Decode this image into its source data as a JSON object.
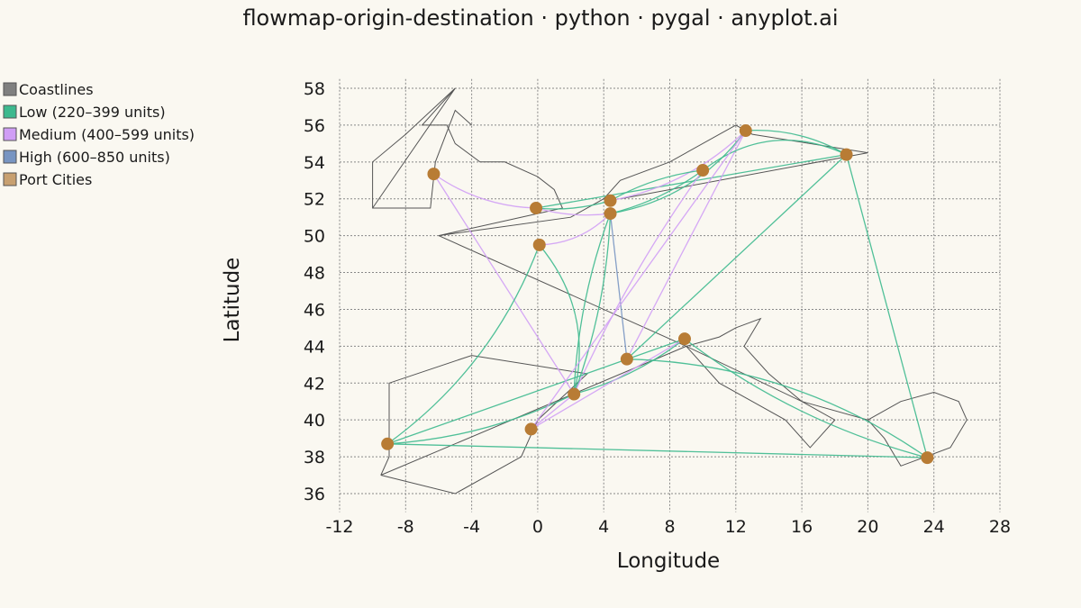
{
  "chart_data": {
    "type": "scatter",
    "title": "flowmap-origin-destination · python · pygal · anyplot.ai",
    "xlabel": "Longitude",
    "ylabel": "Latitude",
    "xlim": [
      -12,
      28
    ],
    "ylim": [
      35,
      58.5
    ],
    "x_ticks": [
      -12,
      -8,
      -4,
      0,
      4,
      8,
      12,
      16,
      20,
      24,
      28
    ],
    "y_ticks": [
      36,
      38,
      40,
      42,
      44,
      46,
      48,
      50,
      52,
      54,
      56,
      58
    ],
    "grid": true,
    "legend_position": "left",
    "legend": [
      {
        "label": "Coastlines",
        "color": "#808080"
      },
      {
        "label": "Low (220–399 units)",
        "color": "#3db98e"
      },
      {
        "label": "Medium (400–599 units)",
        "color": "#d09ef5"
      },
      {
        "label": "High (600–850 units)",
        "color": "#7895c2"
      },
      {
        "label": "Port Cities",
        "color": "#c8a070"
      }
    ],
    "point_color": "#b87c35",
    "coastlines": [
      [
        [
          -10,
          51.5
        ],
        [
          -5,
          58
        ],
        [
          -8,
          55.5
        ],
        [
          -10,
          54
        ],
        [
          -10,
          51.5
        ],
        [
          -6.5,
          51.5
        ],
        [
          -6.2,
          54
        ],
        [
          -5,
          56.8
        ],
        [
          -4,
          56
        ]
      ],
      [
        [
          -5,
          58
        ],
        [
          -7,
          56
        ],
        [
          -5.5,
          56
        ],
        [
          -5,
          55
        ],
        [
          -3.5,
          54
        ],
        [
          -2,
          54
        ],
        [
          0,
          53.2
        ],
        [
          1,
          52.5
        ],
        [
          1.5,
          51.5
        ],
        [
          0,
          51.2
        ],
        [
          -6,
          50
        ],
        [
          2,
          51
        ],
        [
          4,
          52
        ],
        [
          5,
          53
        ],
        [
          8,
          54
        ],
        [
          12,
          56
        ],
        [
          13,
          55.5
        ],
        [
          20,
          54.5
        ],
        [
          5,
          52
        ]
      ],
      [
        [
          -6,
          50
        ],
        [
          9,
          44
        ],
        [
          16,
          41
        ],
        [
          20,
          40
        ],
        [
          22,
          41
        ],
        [
          24,
          41.5
        ],
        [
          25.5,
          41
        ],
        [
          26,
          40
        ],
        [
          25,
          38.5
        ],
        [
          22,
          37.5
        ],
        [
          21,
          39
        ],
        [
          20,
          40
        ]
      ],
      [
        [
          -9.5,
          37
        ],
        [
          9,
          44
        ],
        [
          11,
          44.5
        ],
        [
          12,
          45
        ],
        [
          13.5,
          45.5
        ],
        [
          12.5,
          44
        ],
        [
          14,
          42.5
        ],
        [
          16,
          41
        ],
        [
          18,
          40
        ],
        [
          16.5,
          38.5
        ],
        [
          15,
          40
        ],
        [
          13,
          41
        ],
        [
          11,
          42
        ],
        [
          9,
          44
        ]
      ],
      [
        [
          -9.5,
          37
        ],
        [
          -5,
          36
        ],
        [
          -1,
          38
        ],
        [
          0,
          40
        ],
        [
          3,
          42.5
        ],
        [
          -4,
          43.5
        ],
        [
          -9,
          42
        ],
        [
          -9,
          38
        ],
        [
          -9.5,
          37
        ]
      ]
    ],
    "cities": [
      {
        "lon": -6.3,
        "lat": 53.35
      },
      {
        "lon": -0.1,
        "lat": 51.5
      },
      {
        "lon": 0.1,
        "lat": 49.5
      },
      {
        "lon": 4.4,
        "lat": 51.9
      },
      {
        "lon": 4.4,
        "lat": 51.2
      },
      {
        "lon": 10.0,
        "lat": 53.55
      },
      {
        "lon": 12.6,
        "lat": 55.7
      },
      {
        "lon": 18.7,
        "lat": 54.4
      },
      {
        "lon": 8.9,
        "lat": 44.4
      },
      {
        "lon": 5.4,
        "lat": 43.3
      },
      {
        "lon": 2.2,
        "lat": 41.4
      },
      {
        "lon": -0.4,
        "lat": 39.5
      },
      {
        "lon": -9.1,
        "lat": 38.7
      },
      {
        "lon": 23.6,
        "lat": 37.95
      }
    ],
    "flows": [
      {
        "from": [
          -6.3,
          53.35
        ],
        "to": [
          -0.1,
          51.5
        ],
        "level": "medium",
        "bend": 0.15
      },
      {
        "from": [
          -6.3,
          53.35
        ],
        "to": [
          2.2,
          41.4
        ],
        "level": "medium",
        "bend": 0
      },
      {
        "from": [
          -0.1,
          51.5
        ],
        "to": [
          4.4,
          51.9
        ],
        "level": "low",
        "bend": 0.1
      },
      {
        "from": [
          -0.1,
          51.5
        ],
        "to": [
          4.4,
          51.2
        ],
        "level": "medium",
        "bend": 0.1
      },
      {
        "from": [
          -0.1,
          51.5
        ],
        "to": [
          18.7,
          54.4
        ],
        "level": "low",
        "bend": 0
      },
      {
        "from": [
          0.1,
          49.5
        ],
        "to": [
          4.4,
          51.2
        ],
        "level": "medium",
        "bend": 0.2
      },
      {
        "from": [
          0.1,
          49.5
        ],
        "to": [
          2.2,
          41.4
        ],
        "level": "low",
        "bend": -0.25
      },
      {
        "from": [
          4.4,
          51.9
        ],
        "to": [
          12.6,
          55.7
        ],
        "level": "medium",
        "bend": 0.15
      },
      {
        "from": [
          4.4,
          51.9
        ],
        "to": [
          10.0,
          53.55
        ],
        "level": "low",
        "bend": -0.1
      },
      {
        "from": [
          4.4,
          51.2
        ],
        "to": [
          12.6,
          55.7
        ],
        "level": "low",
        "bend": 0.2
      },
      {
        "from": [
          4.4,
          51.2
        ],
        "to": [
          10.0,
          53.55
        ],
        "level": "low",
        "bend": 0.1
      },
      {
        "from": [
          4.4,
          51.2
        ],
        "to": [
          2.2,
          41.4
        ],
        "level": "low",
        "bend": 0.08
      },
      {
        "from": [
          4.4,
          51.2
        ],
        "to": [
          5.4,
          43.3
        ],
        "level": "high",
        "bend": 0
      },
      {
        "from": [
          4.4,
          51.2
        ],
        "to": [
          2.2,
          41.4
        ],
        "level": "low",
        "bend": -0.08
      },
      {
        "from": [
          10.0,
          53.55
        ],
        "to": [
          2.2,
          41.4
        ],
        "level": "medium",
        "bend": 0.05
      },
      {
        "from": [
          12.6,
          55.7
        ],
        "to": [
          5.4,
          43.3
        ],
        "level": "medium",
        "bend": 0
      },
      {
        "from": [
          12.6,
          55.7
        ],
        "to": [
          18.7,
          54.4
        ],
        "level": "low",
        "bend": -0.15
      },
      {
        "from": [
          10.0,
          53.55
        ],
        "to": [
          18.7,
          54.4
        ],
        "level": "low",
        "bend": -0.3
      },
      {
        "from": [
          18.7,
          54.4
        ],
        "to": [
          23.6,
          37.95
        ],
        "level": "low",
        "bend": 0
      },
      {
        "from": [
          18.7,
          54.4
        ],
        "to": [
          5.4,
          43.3
        ],
        "level": "low",
        "bend": 0
      },
      {
        "from": [
          8.9,
          44.4
        ],
        "to": [
          2.2,
          41.4
        ],
        "level": "low",
        "bend": -0.1
      },
      {
        "from": [
          8.9,
          44.4
        ],
        "to": [
          -0.4,
          39.5
        ],
        "level": "medium",
        "bend": 0
      },
      {
        "from": [
          8.9,
          44.4
        ],
        "to": [
          -9.1,
          38.7
        ],
        "level": "low",
        "bend": 0
      },
      {
        "from": [
          8.9,
          44.4
        ],
        "to": [
          23.6,
          37.95
        ],
        "level": "low",
        "bend": 0.1
      },
      {
        "from": [
          5.4,
          43.3
        ],
        "to": [
          23.6,
          37.95
        ],
        "level": "low",
        "bend": -0.15
      },
      {
        "from": [
          -9.1,
          38.7
        ],
        "to": [
          0.1,
          49.5
        ],
        "level": "low",
        "bend": 0.15
      },
      {
        "from": [
          -9.1,
          38.7
        ],
        "to": [
          23.6,
          37.95
        ],
        "level": "low",
        "bend": 0
      },
      {
        "from": [
          -9.1,
          38.7
        ],
        "to": [
          2.2,
          41.4
        ],
        "level": "low",
        "bend": 0.1
      },
      {
        "from": [
          -0.4,
          39.5
        ],
        "to": [
          2.2,
          41.4
        ],
        "level": "medium",
        "bend": 0
      },
      {
        "from": [
          -0.4,
          39.5
        ],
        "to": [
          12.6,
          55.7
        ],
        "level": "medium",
        "bend": 0
      }
    ]
  }
}
